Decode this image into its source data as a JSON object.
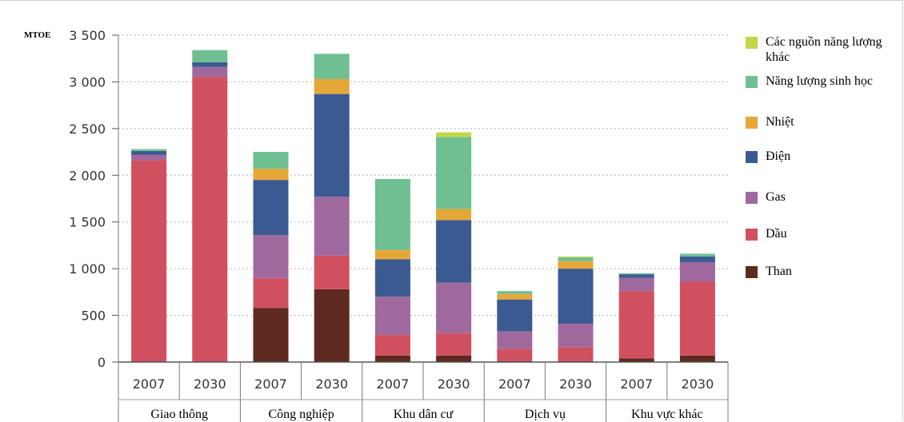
{
  "chart_data": {
    "type": "bar",
    "stacked": true,
    "unit_label": "MTOE",
    "ylim": [
      0,
      3500
    ],
    "y_ticks": [
      0,
      500,
      1000,
      1500,
      2000,
      2500,
      3000,
      3500
    ],
    "y_tick_labels": [
      "0",
      "500",
      "1 000",
      "1 500",
      "2 000",
      "2 500",
      "3 000",
      "3 500"
    ],
    "grid": true,
    "legend_position": "right",
    "categories": [
      "2007",
      "2030",
      "2007",
      "2030",
      "2007",
      "2030",
      "2007",
      "2030",
      "2007",
      "2030"
    ],
    "groups": [
      {
        "label": "Giao thông",
        "span": [
          0,
          1
        ]
      },
      {
        "label": "Công nghiệp",
        "span": [
          2,
          3
        ]
      },
      {
        "label": "Khu dân cư",
        "span": [
          4,
          5
        ]
      },
      {
        "label": "Dịch vụ",
        "span": [
          6,
          7
        ]
      },
      {
        "label": "Khu vực khác",
        "span": [
          8,
          9
        ]
      }
    ],
    "series": [
      {
        "name": "Than",
        "color": "#5e2a1f",
        "values": [
          0,
          0,
          580,
          780,
          70,
          70,
          10,
          10,
          40,
          70
        ]
      },
      {
        "name": "Dầu",
        "color": "#d05060",
        "values": [
          2160,
          3050,
          320,
          360,
          220,
          240,
          130,
          150,
          720,
          790
        ]
      },
      {
        "name": "Gas",
        "color": "#a0699d",
        "values": [
          60,
          110,
          460,
          630,
          410,
          540,
          190,
          250,
          140,
          210
        ]
      },
      {
        "name": "Điện",
        "color": "#3b5a92",
        "values": [
          40,
          50,
          590,
          1100,
          400,
          670,
          340,
          590,
          40,
          60
        ]
      },
      {
        "name": "Nhiệt",
        "color": "#e5a838",
        "values": [
          0,
          0,
          120,
          160,
          100,
          120,
          60,
          80,
          0,
          0
        ]
      },
      {
        "name": "Năng lượng sinh học",
        "color": "#6fbf92",
        "values": [
          20,
          130,
          180,
          270,
          760,
          770,
          30,
          40,
          10,
          30
        ]
      },
      {
        "name": "Các nguồn năng lượng khác",
        "color": "#c3d64a",
        "values": [
          0,
          0,
          0,
          0,
          0,
          50,
          0,
          10,
          0,
          0
        ]
      }
    ],
    "legend_order": [
      6,
      5,
      4,
      3,
      2,
      1,
      0
    ]
  }
}
